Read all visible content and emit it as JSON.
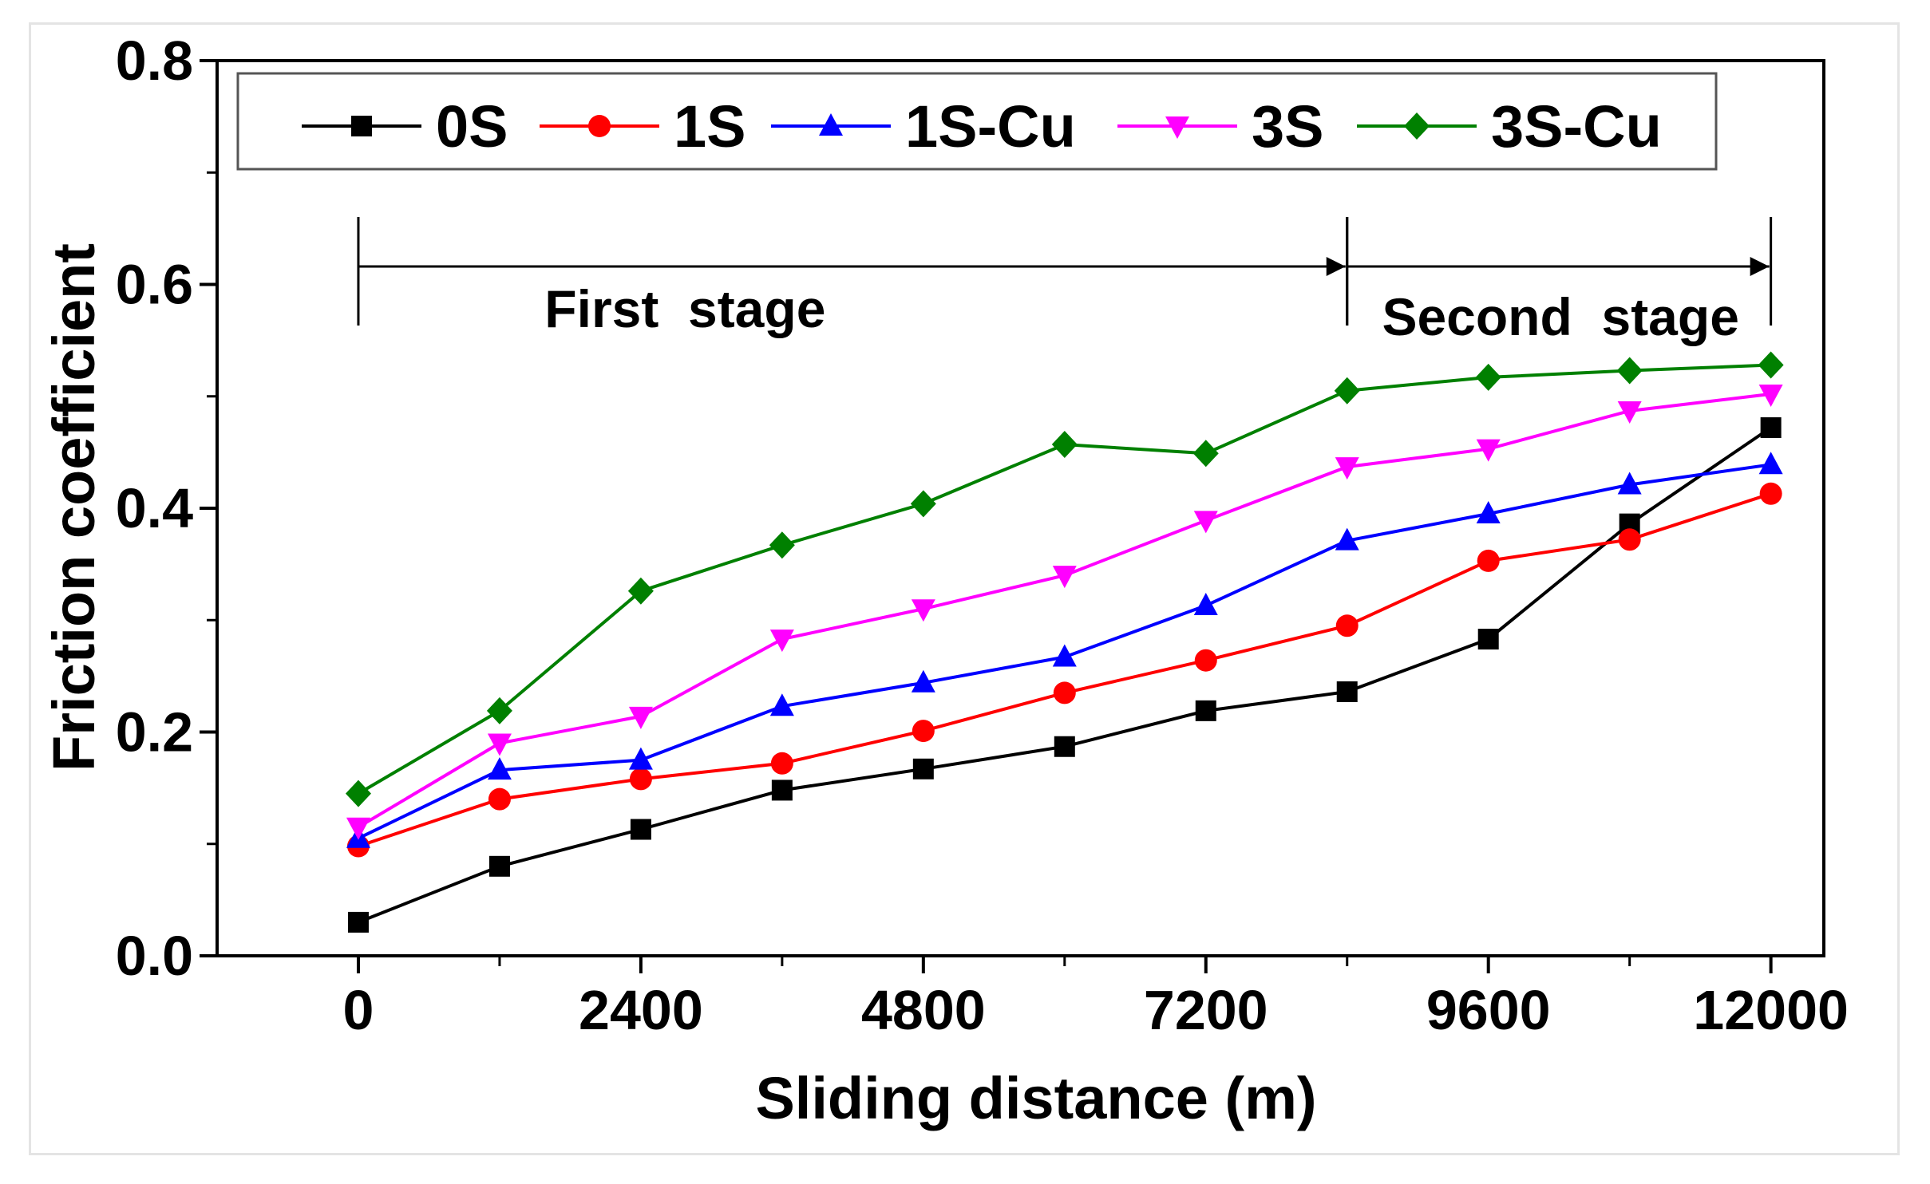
{
  "chart_data": {
    "type": "line",
    "title": "",
    "xlabel": "Sliding distance (m)",
    "ylabel": "Friction coefficient",
    "xlim": [
      -1200,
      12450
    ],
    "ylim": [
      0,
      0.8
    ],
    "xticks_major": [
      0,
      2400,
      4800,
      7200,
      9600,
      12000
    ],
    "xtick_labels": [
      "0",
      "2400",
      "4800",
      "7200",
      "9600",
      "12000"
    ],
    "xticks_minor": [
      1200,
      3600,
      6000,
      8400,
      10800
    ],
    "yticks_major": [
      0.0,
      0.2,
      0.4,
      0.6,
      0.8
    ],
    "ytick_labels": [
      "0.0",
      "0.2",
      "0.4",
      "0.6",
      "0.8"
    ],
    "yticks_minor": [
      0.1,
      0.3,
      0.5,
      0.7
    ],
    "grid": false,
    "legend_position": "top",
    "x": [
      0,
      1200,
      2400,
      3600,
      4800,
      6000,
      7200,
      8400,
      9600,
      10800,
      12000
    ],
    "series": [
      {
        "name": "0S",
        "color": "#000000",
        "marker": "square",
        "values": [
          0.03,
          0.08,
          0.113,
          0.148,
          0.167,
          0.187,
          0.219,
          0.236,
          0.283,
          0.386,
          0.472
        ]
      },
      {
        "name": "1S",
        "color": "#ff0000",
        "marker": "circle",
        "values": [
          0.098,
          0.14,
          0.158,
          0.172,
          0.201,
          0.235,
          0.264,
          0.295,
          0.353,
          0.372,
          0.413
        ]
      },
      {
        "name": "1S-Cu",
        "color": "#0000ff",
        "marker": "triangle-up",
        "values": [
          0.105,
          0.166,
          0.175,
          0.223,
          0.244,
          0.267,
          0.313,
          0.371,
          0.395,
          0.421,
          0.439
        ]
      },
      {
        "name": "3S",
        "color": "#ff00ff",
        "marker": "triangle-down",
        "values": [
          0.115,
          0.19,
          0.214,
          0.283,
          0.31,
          0.34,
          0.389,
          0.437,
          0.453,
          0.487,
          0.502
        ]
      },
      {
        "name": "3S-Cu",
        "color": "#008000",
        "marker": "diamond",
        "values": [
          0.145,
          0.219,
          0.326,
          0.367,
          0.404,
          0.457,
          0.449,
          0.505,
          0.517,
          0.523,
          0.528
        ]
      }
    ],
    "annotations": [
      {
        "label": "First  stage",
        "x_start": 0,
        "x_end": 8400
      },
      {
        "label": "Second  stage",
        "x_start": 8400,
        "x_end": 12000
      }
    ]
  }
}
